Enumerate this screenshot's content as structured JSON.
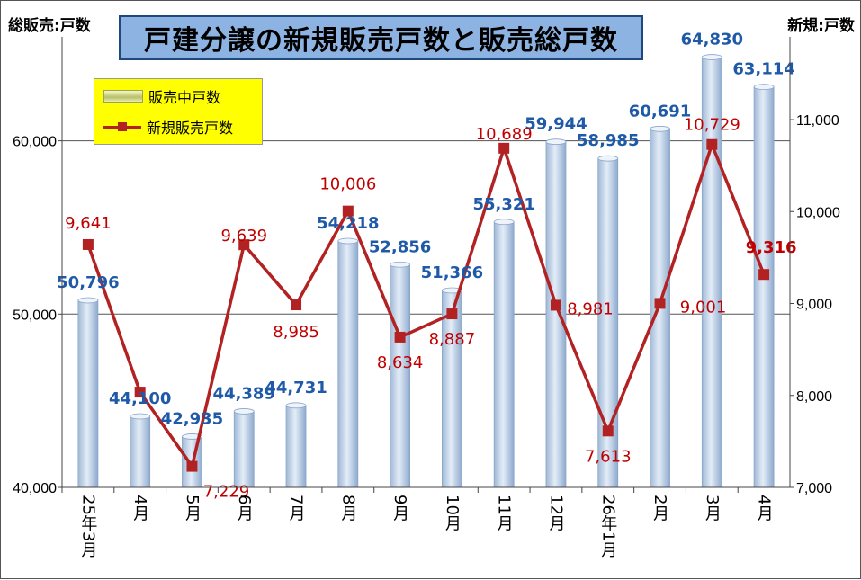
{
  "title": "戸建分譲の新規販売戸数と販売総戸数",
  "left_axis_title": "総販売:戸数",
  "right_axis_title": "新規:戸数",
  "legend": {
    "bar_label": "販売中戸数",
    "line_label": "新規販売戸数"
  },
  "colors": {
    "bar": "#b8cce4",
    "bar_label": "#1f5aa8",
    "line": "#b22222",
    "line_label": "#c00000",
    "title_bg": "#8db3e2",
    "legend_bg": "#ffff00"
  },
  "chart_data": {
    "type": "bar",
    "categories": [
      "25年3月",
      "4月",
      "5月",
      "6月",
      "7月",
      "8月",
      "9月",
      "10月",
      "11月",
      "12月",
      "26年1月",
      "2月",
      "3月",
      "4月"
    ],
    "series": [
      {
        "name": "販売中戸数",
        "type": "bar",
        "axis": "left",
        "values": [
          50796,
          44100,
          42935,
          44389,
          44731,
          54218,
          52856,
          51366,
          55321,
          59944,
          58985,
          60691,
          64830,
          63114
        ],
        "labels": [
          "50,796",
          "44,100",
          "42,935",
          "44,389",
          "44,731",
          "54,218",
          "52,856",
          "51,366",
          "55,321",
          "59,944",
          "58,985",
          "60,691",
          "64,830",
          "63,114"
        ]
      },
      {
        "name": "新規販売戸数",
        "type": "line",
        "axis": "right",
        "values": [
          9641,
          8036,
          7229,
          9639,
          8985,
          10006,
          8634,
          8887,
          10689,
          8981,
          7613,
          9001,
          10729,
          9316
        ],
        "labels": [
          "9,641",
          "",
          "7,229",
          "9,639",
          "8,985",
          "10,006",
          "8,634",
          "8,887",
          "10,689",
          "8,981",
          "7,613",
          "9,001",
          "10,729",
          "9,316"
        ]
      }
    ],
    "left_axis": {
      "ylim": [
        40000,
        66000
      ],
      "ticks": [
        40000,
        50000,
        60000
      ],
      "tick_labels": [
        "40,000",
        "50,000",
        "60,000"
      ]
    },
    "right_axis": {
      "ylim": [
        7000,
        11900
      ],
      "ticks": [
        7000,
        8000,
        9000,
        10000,
        11000
      ],
      "tick_labels": [
        "7,000",
        "8,000",
        "9,000",
        "10,000",
        "11,000"
      ]
    },
    "grid": true,
    "legend_position": "top-left"
  }
}
